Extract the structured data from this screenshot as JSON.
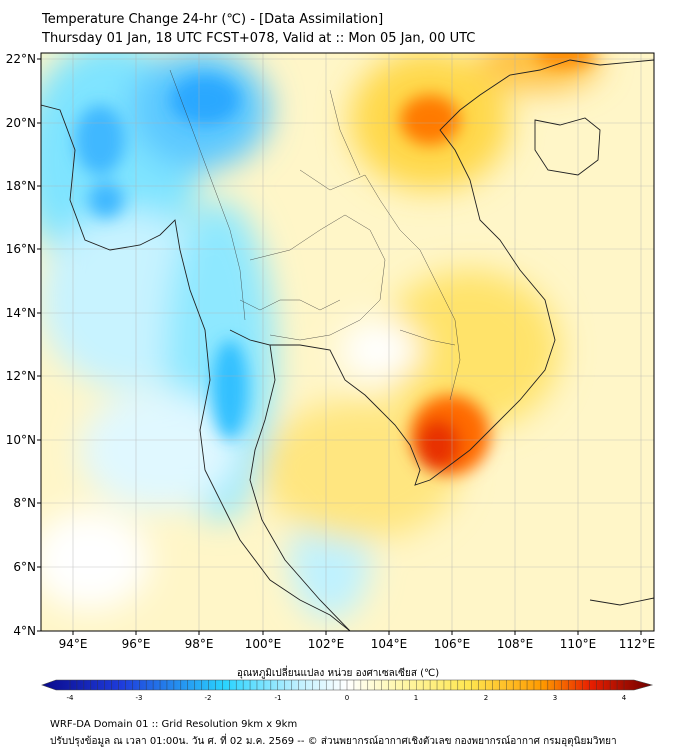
{
  "title_line1": "Temperature Change 24-hr (℃) - [Data Assimilation]",
  "title_line2": "Thursday 01 Jan, 18 UTC FCST+078, Valid at :: Mon 05 Jan, 00 UTC",
  "map": {
    "lon_range": [
      93,
      113
    ],
    "lat_range": [
      4,
      22.3
    ],
    "lon_ticks": [
      "94°E",
      "96°E",
      "98°E",
      "100°E",
      "102°E",
      "104°E",
      "106°E",
      "108°E",
      "110°E",
      "112°E"
    ],
    "lat_ticks": [
      "4°N",
      "6°N",
      "8°N",
      "10°N",
      "12°N",
      "14°N",
      "16°N",
      "18°N",
      "20°N",
      "22°N"
    ],
    "grid": true
  },
  "colorbar": {
    "label": "อุณหภูมิเปลี่ยนแปลง หน่วย องศาเซลเซียส (℃)",
    "range": [
      -4,
      4
    ],
    "ticks": [
      "-4",
      "-3",
      "-2",
      "-1",
      "0",
      "1",
      "2",
      "3",
      "4"
    ],
    "colors": {
      "cold_extreme": "#0a0a8c",
      "cold": "#1e64ff",
      "cool": "#2ad4ff",
      "neutral": "#ffffff",
      "warm": "#ffe650",
      "hot": "#ff7800",
      "hot_extreme": "#6e0000"
    }
  },
  "footer_line1": "WRF-DA Domain 01 :: Grid Resolution 9km x 9km",
  "footer_line2": "ปรับปรุงข้อมูล ณ เวลา 01:00น. วัน ศ. ที่ 02 ม.ค. 2569 -- © ส่วนพยากรณ์อากาศเชิงตัวเลข กองพยากรณ์อากาศ กรมอุตุนิยมวิทยา"
}
